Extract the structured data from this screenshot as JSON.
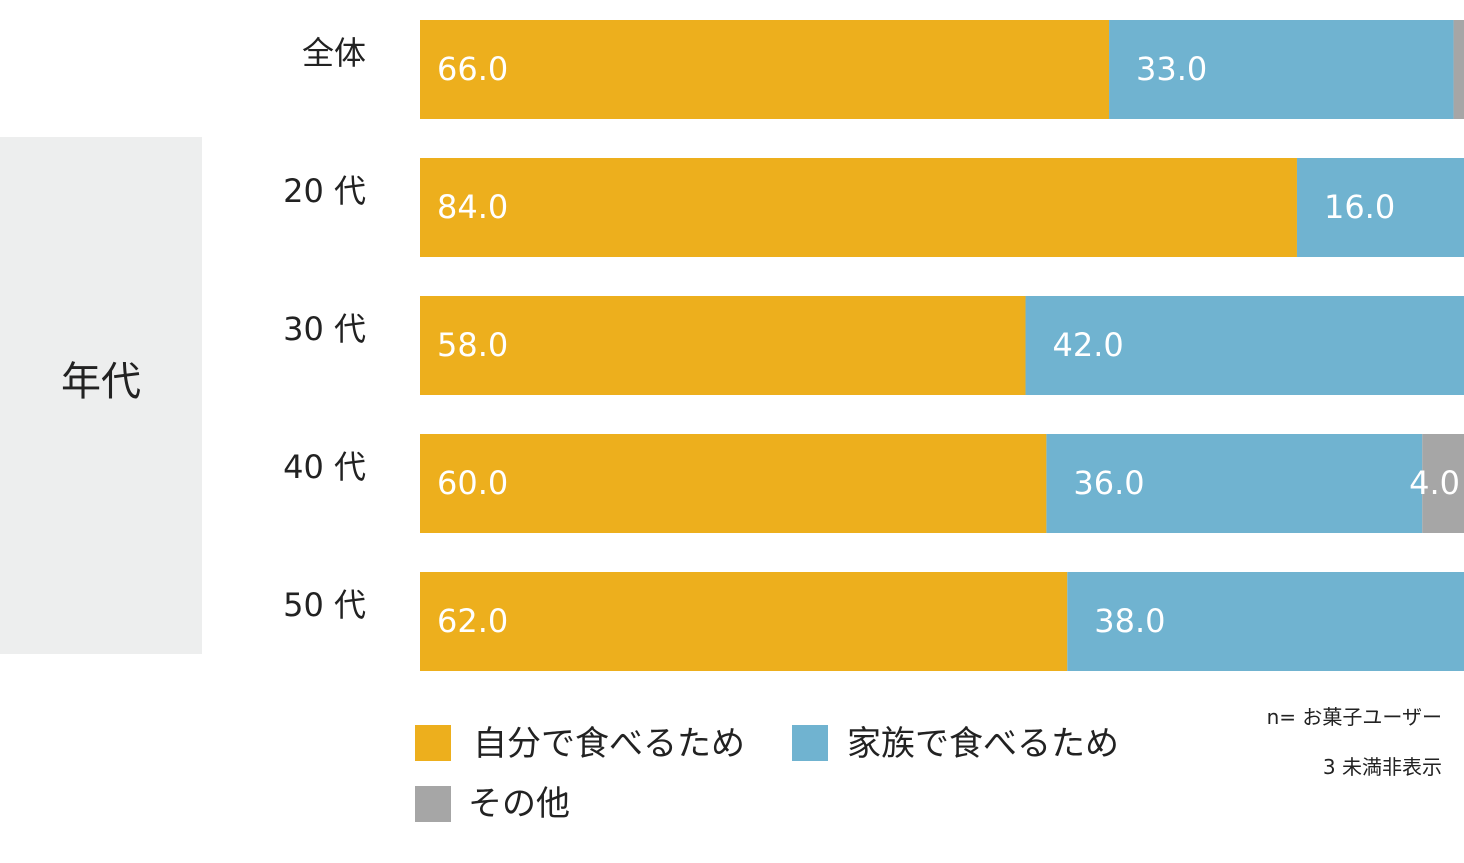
{
  "chart_data": {
    "type": "bar",
    "orientation": "horizontal",
    "stacked": true,
    "percent_scale": true,
    "xlim": [
      0,
      100
    ],
    "grid": false,
    "legend_position": "bottom-left",
    "group_label": "年代",
    "categories": [
      "全体",
      "20 代",
      "30 代",
      "40 代",
      "50 代"
    ],
    "series": [
      {
        "name": "自分で食べるため",
        "color": "#EDAF1D",
        "values": [
          66.0,
          84.0,
          58.0,
          60.0,
          62.0
        ]
      },
      {
        "name": "家族で食べるため",
        "color": "#70B3D0",
        "values": [
          33.0,
          16.0,
          42.0,
          36.0,
          38.0
        ]
      },
      {
        "name": "その他",
        "color": "#A6A6A6",
        "values": [
          1.0,
          0.0,
          0.0,
          4.0,
          0.0
        ]
      }
    ],
    "data_labels": [
      [
        "66.0",
        "33.0",
        ""
      ],
      [
        "84.0",
        "16.0",
        ""
      ],
      [
        "58.0",
        "42.0",
        ""
      ],
      [
        "60.0",
        "36.0",
        "4.0"
      ],
      [
        "62.0",
        "38.0",
        ""
      ]
    ],
    "notes": [
      "n= お菓子ユーザー",
      "3 未満非表示"
    ],
    "group_band_color": "#EDEEEE"
  }
}
